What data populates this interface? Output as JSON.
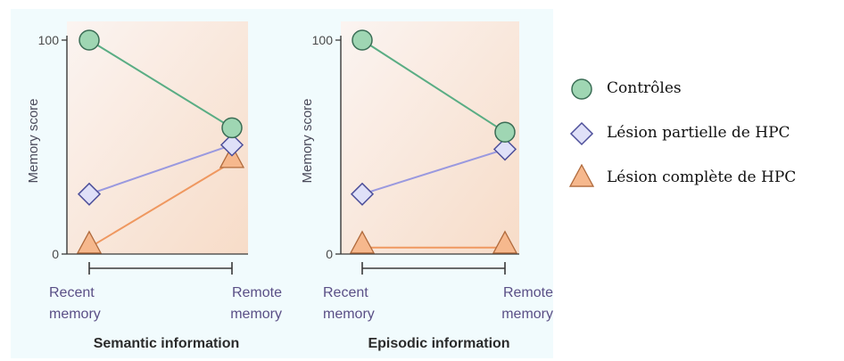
{
  "figure": {
    "background_color": "#f1fbfd",
    "series_colors": {
      "Contrôles": "#5aad84",
      "Lésion partielle de HPC": "#9a99df",
      "Lésion complète de HPC": "#ef9860"
    },
    "marker_colors": {
      "Contrôles": "#9fd6b3",
      "Lésion partielle de HPC": "#dfe0f8",
      "Lésion complète de HPC": "#f6b88d"
    }
  },
  "chart_data": [
    {
      "type": "line",
      "title": "Semantic information",
      "ylabel": "Memory score",
      "yticks": [
        "0",
        "100"
      ],
      "ylim": [
        0,
        100
      ],
      "categories": [
        "Recent\nmemory",
        "Remote\nmemory"
      ],
      "series": [
        {
          "name": "Contrôles",
          "marker": "circle",
          "values": [
            100,
            59
          ]
        },
        {
          "name": "Lésion partielle de HPC",
          "marker": "diamond",
          "values": [
            28,
            51
          ]
        },
        {
          "name": "Lésion complète de HPC",
          "marker": "triangle",
          "values": [
            3,
            43
          ]
        }
      ]
    },
    {
      "type": "line",
      "title": "Episodic information",
      "ylabel": "Memory score",
      "yticks": [
        "0",
        "100"
      ],
      "ylim": [
        0,
        100
      ],
      "categories": [
        "Recent\nmemory",
        "Remote\nmemory"
      ],
      "series": [
        {
          "name": "Contrôles",
          "marker": "circle",
          "values": [
            100,
            57
          ]
        },
        {
          "name": "Lésion partielle de HPC",
          "marker": "diamond",
          "values": [
            28,
            49
          ]
        },
        {
          "name": "Lésion complète de HPC",
          "marker": "triangle",
          "values": [
            3,
            3
          ]
        }
      ]
    }
  ],
  "legend": [
    {
      "label": "Contrôles",
      "marker": "circle"
    },
    {
      "label": "Lésion partielle de HPC",
      "marker": "diamond"
    },
    {
      "label": "Lésion complète de HPC",
      "marker": "triangle"
    }
  ]
}
